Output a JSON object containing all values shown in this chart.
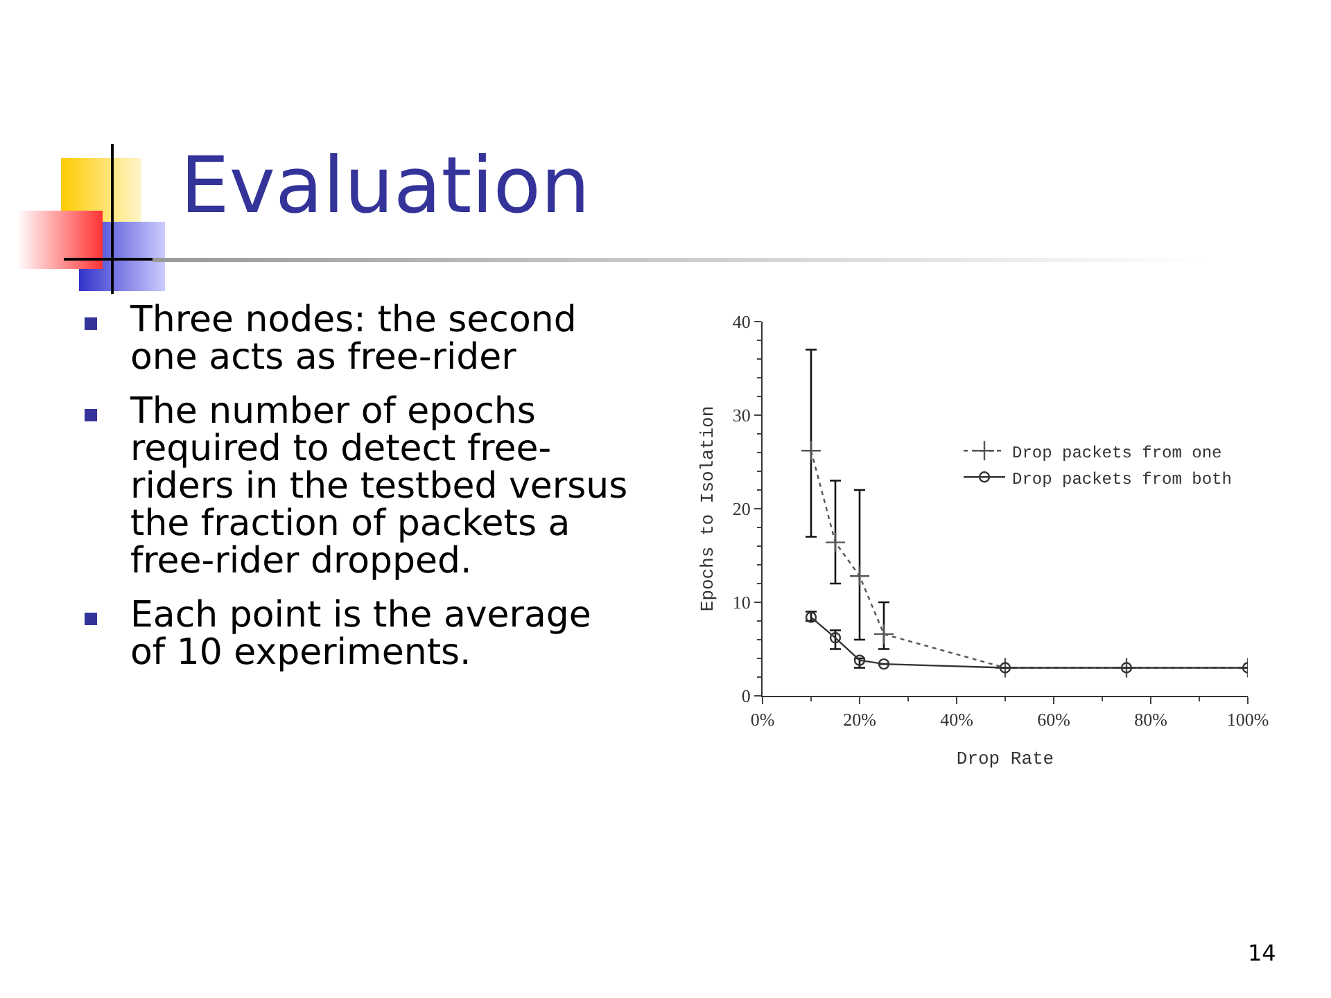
{
  "chart_data": {
    "type": "line",
    "title": "Evaluation",
    "annotations": [
      "Three nodes: the second one acts as free-rider",
      "The number of epochs required to detect free-riders in the testbed versus the fraction of packets a free-rider dropped.",
      "Each point is the average of 10 experiments.",
      "14"
    ],
    "xlabel": "Drop Rate",
    "ylabel": "Epochs to Isolation",
    "x": [
      10,
      15,
      20,
      25,
      50,
      75,
      100
    ],
    "series": [
      {
        "name": "Drop packets from one",
        "color": "#555555",
        "marker": "cross",
        "line_style": "dotted",
        "values": [
          26.2,
          16.4,
          12.8,
          6.6,
          3,
          3,
          3
        ],
        "errors": [
          [
            17,
            37
          ],
          [
            12,
            23
          ],
          [
            6,
            22
          ],
          [
            5,
            10
          ],
          null,
          null,
          null
        ]
      },
      {
        "name": "Drop packets from both",
        "color": "#333333",
        "marker": "circle",
        "line_style": "solid",
        "values": [
          8.4,
          6.2,
          3.8,
          3.4,
          3,
          3,
          3
        ],
        "errors": [
          [
            8,
            9
          ],
          [
            5,
            7
          ],
          [
            3,
            4
          ],
          null,
          null,
          null,
          null
        ]
      }
    ],
    "xlim": [
      0,
      100
    ],
    "xticks": [
      {
        "value": 0,
        "label": "0%"
      },
      {
        "value": 20,
        "label": "20%"
      },
      {
        "value": 40,
        "label": "40%"
      },
      {
        "value": 60,
        "label": "60%"
      },
      {
        "value": 80,
        "label": "80%"
      },
      {
        "value": 100,
        "label": "100%"
      }
    ],
    "ylim": [
      0,
      40
    ],
    "yticks": [
      0,
      10,
      20,
      30,
      40
    ],
    "grid": false,
    "legend": "right"
  }
}
